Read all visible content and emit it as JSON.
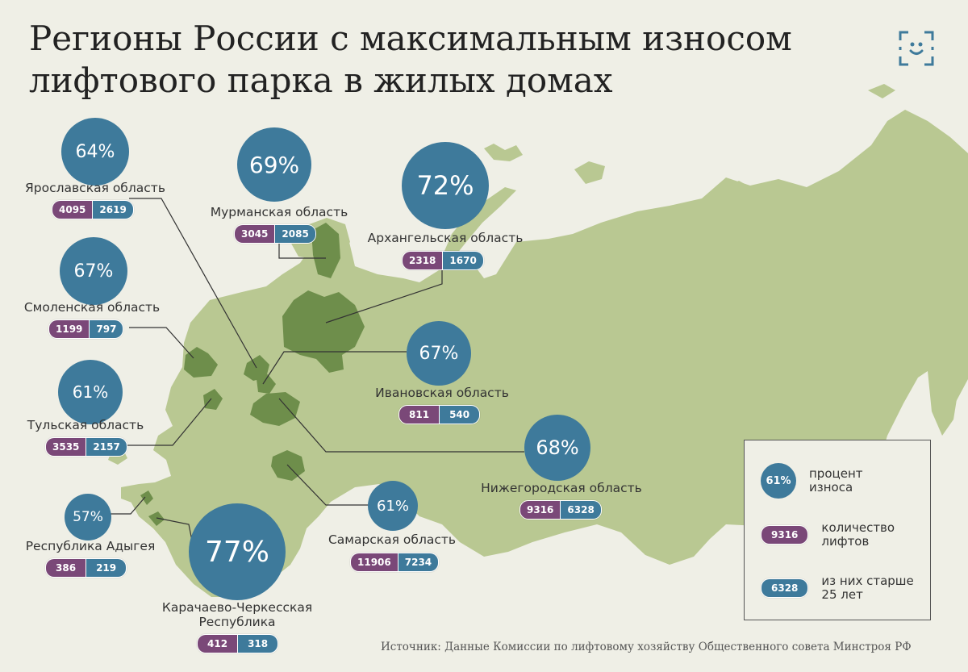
{
  "title": {
    "line1": "Регионы России с максимальным износом",
    "line2": "лифтового парка в жилых домах"
  },
  "colors": {
    "land": "#b9c892",
    "region_highlight": "#6e8e4b",
    "circle": "#3e7a9b",
    "pill_total": "#7a4878",
    "pill_old": "#3e7a9b"
  },
  "regions": [
    {
      "name": "Ярославская область",
      "wear": "64%",
      "lifts": "4095",
      "old": "2619"
    },
    {
      "name": "Мурманская область",
      "wear": "69%",
      "lifts": "3045",
      "old": "2085"
    },
    {
      "name": "Архангельская область",
      "wear": "72%",
      "lifts": "2318",
      "old": "1670"
    },
    {
      "name": "Смоленская область",
      "wear": "67%",
      "lifts": "1199",
      "old": "797"
    },
    {
      "name": "Ивановская область",
      "wear": "67%",
      "lifts": "811",
      "old": "540"
    },
    {
      "name": "Тульская область",
      "wear": "61%",
      "lifts": "3535",
      "old": "2157"
    },
    {
      "name": "Нижегородская область",
      "wear": "68%",
      "lifts": "9316",
      "old": "6328"
    },
    {
      "name": "Республика Адыгея",
      "wear": "57%",
      "lifts": "386",
      "old": "219"
    },
    {
      "name": "Самарская область",
      "wear": "61%",
      "lifts": "11906",
      "old": "7234"
    },
    {
      "name": "Карачаево-Черкесская Республика",
      "wear": "77%",
      "lifts": "412",
      "old": "318"
    }
  ],
  "legend": {
    "wear_sample": "61%",
    "wear_label": "процент износа",
    "lifts_sample": "9316",
    "lifts_label": "количество лифтов",
    "old_sample": "6328",
    "old_label": "из них старше 25 лет"
  },
  "source": "Источник: Данные Комиссии по лифтовому хозяйству Общественного совета Минстроя РФ"
}
